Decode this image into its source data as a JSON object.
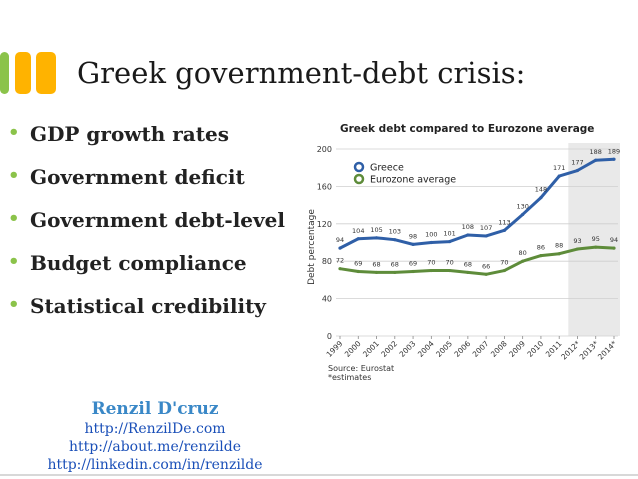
{
  "slide": {
    "title": "Greek government-debt crisis:",
    "bullets": [
      "GDP growth rates",
      "Government deficit",
      "Government debt-level",
      "Budget compliance",
      "Statistical credibility"
    ]
  },
  "credit": {
    "name": "Renzil D'cruz",
    "links": [
      "http://RenzilDe.com",
      "http://about.me/renzilde",
      "http://linkedin.com/in/renzilde"
    ]
  },
  "chart_data": {
    "type": "line",
    "title": "Greek debt compared to Eurozone average",
    "ylabel": "Debt percentage",
    "xlabel": "",
    "categories": [
      "1999",
      "2000",
      "2001",
      "2002",
      "2003",
      "2004",
      "2005",
      "2006",
      "2007",
      "2008",
      "2009",
      "2010",
      "2011",
      "2012*",
      "2013*",
      "2014*"
    ],
    "ylim": [
      0,
      200
    ],
    "yticks": [
      0,
      40,
      80,
      120,
      160,
      200
    ],
    "series": [
      {
        "name": "Greece",
        "color": "#2f5fa7",
        "values": [
          94,
          104,
          105,
          103,
          98,
          100,
          101,
          108,
          107,
          113,
          130,
          148,
          171,
          177,
          188,
          189
        ]
      },
      {
        "name": "Eurozone average",
        "color": "#5e8c3a",
        "values": [
          72,
          69,
          68,
          68,
          69,
          70,
          70,
          68,
          66,
          70,
          80,
          86,
          88,
          93,
          95,
          94
        ]
      }
    ],
    "legend_position": "top-left",
    "grid": true,
    "shaded_from": "2012*",
    "source": "Source: Eurostat",
    "note": "*estimates"
  }
}
